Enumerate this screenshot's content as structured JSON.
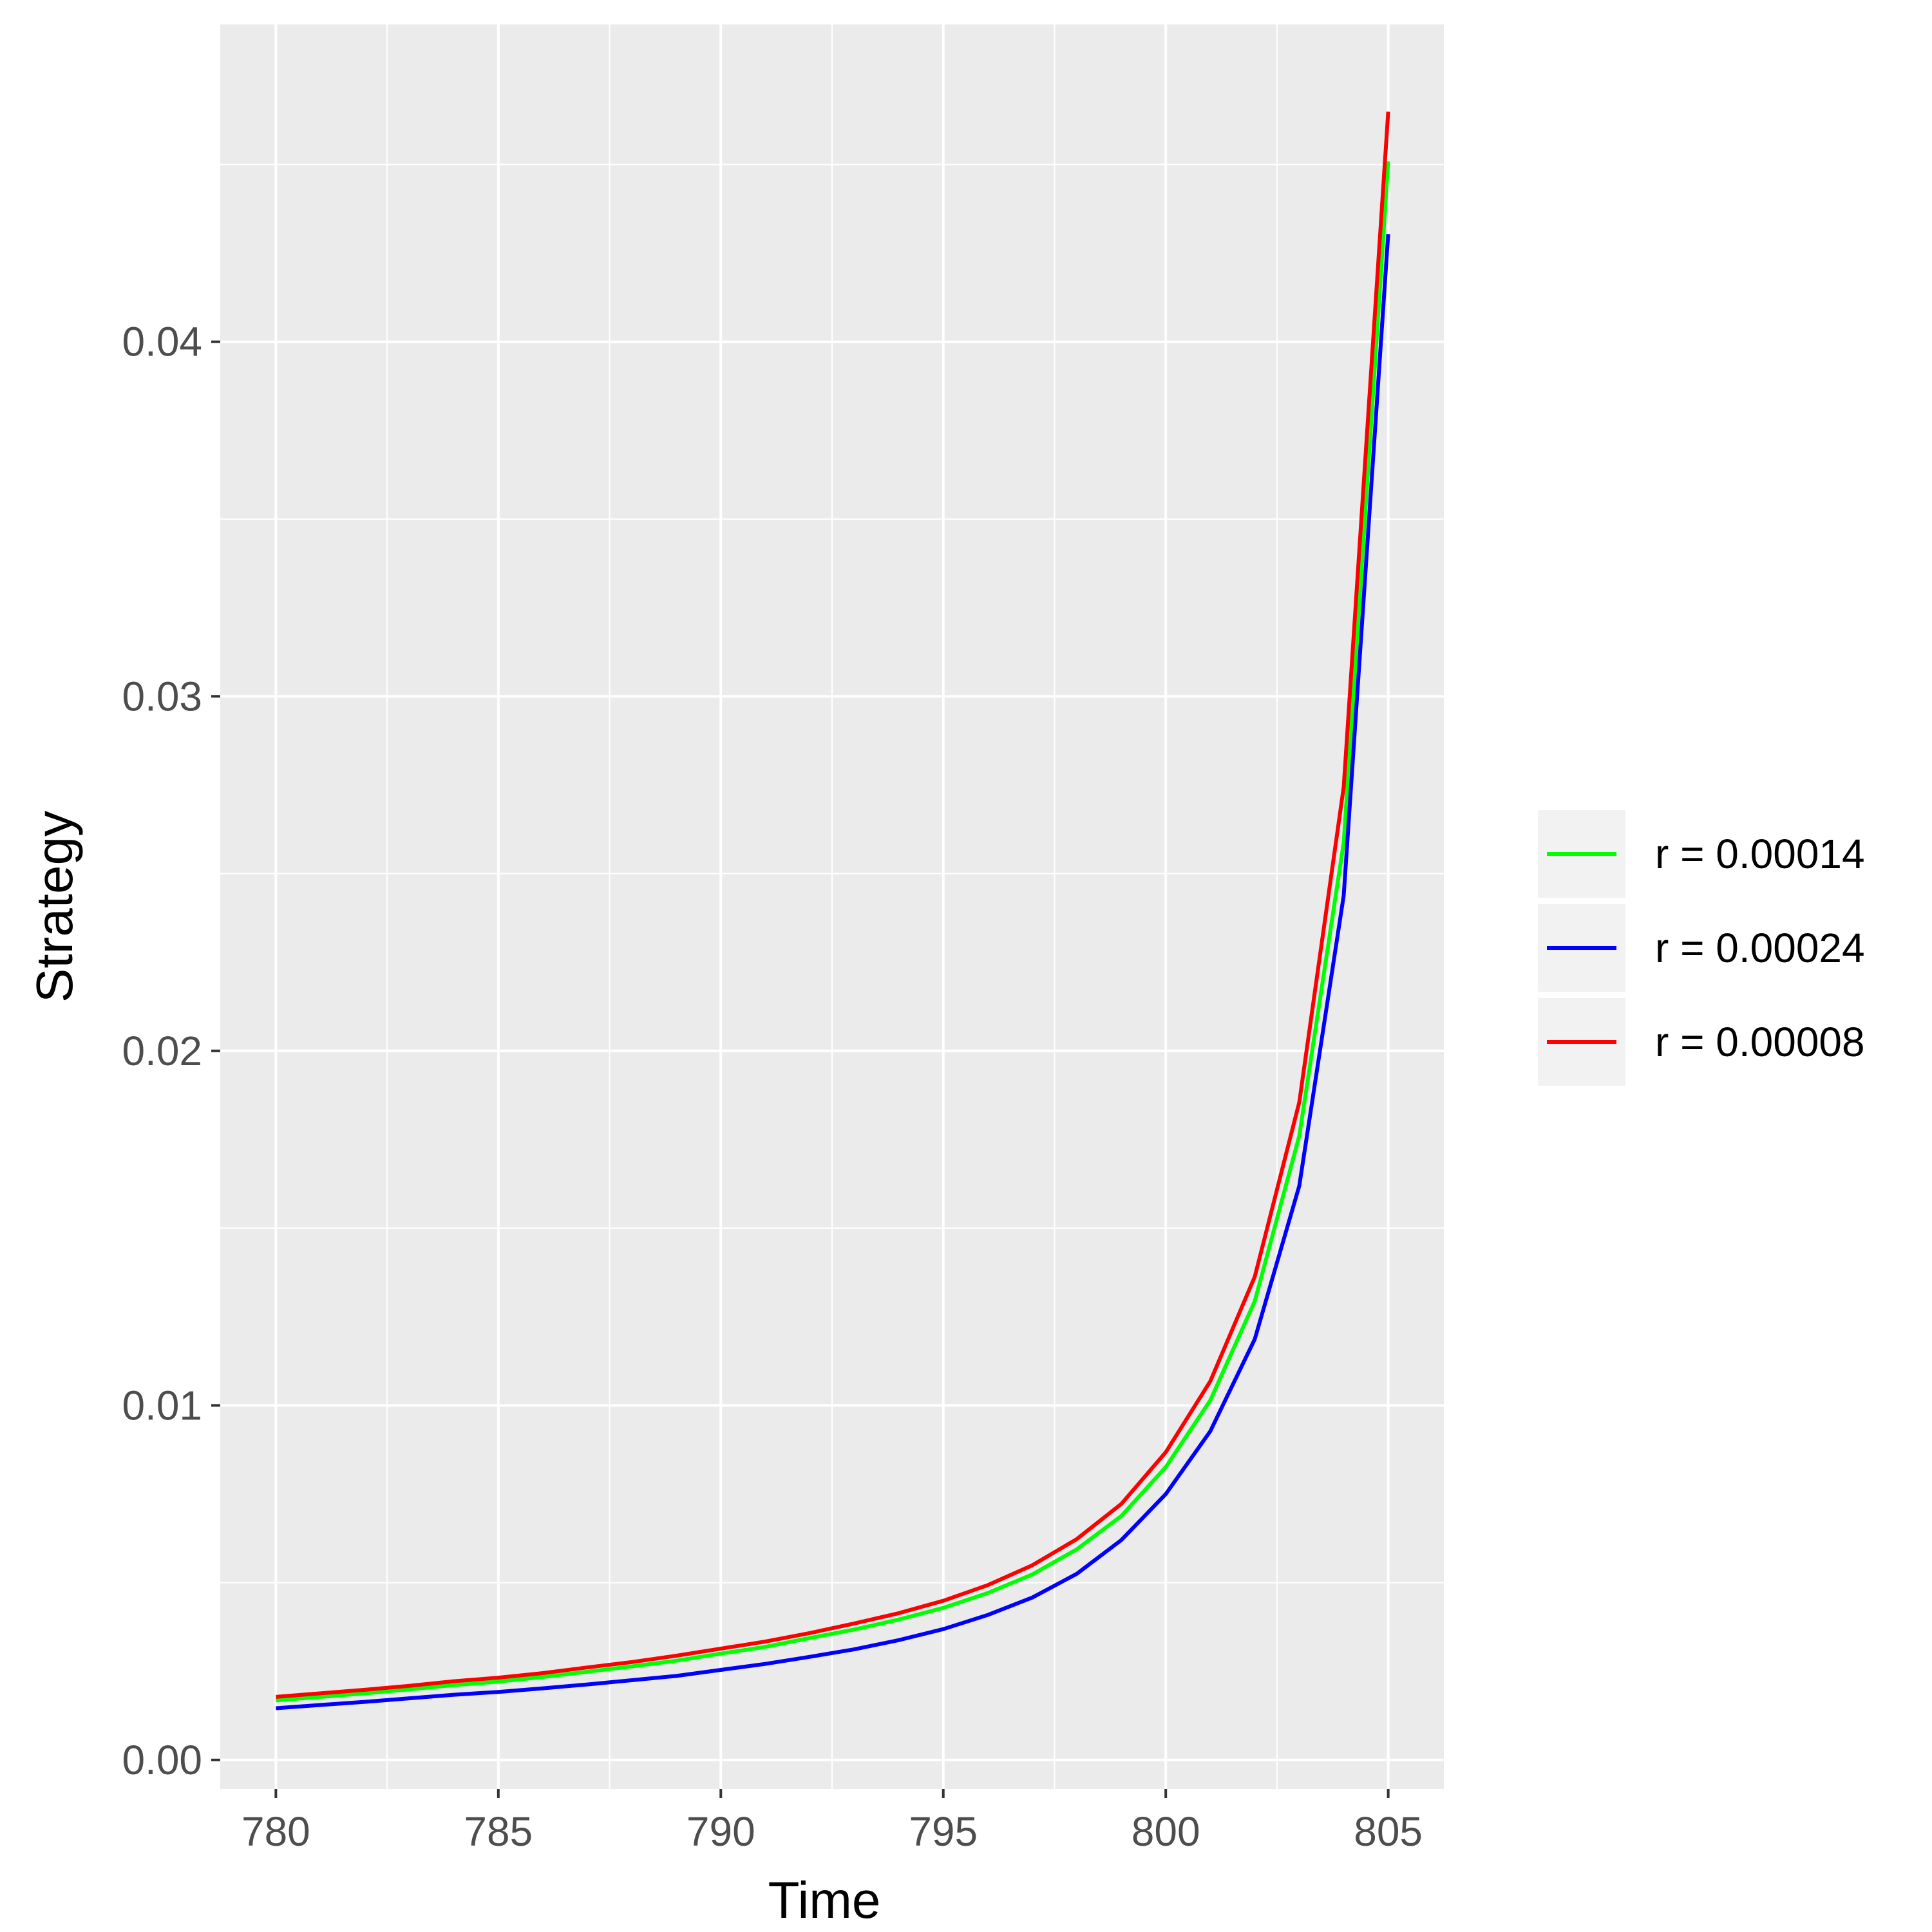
{
  "chart_data": {
    "type": "line",
    "xlabel": "Time",
    "ylabel": "Strategy",
    "xlim": [
      778.75,
      806.25
    ],
    "ylim": [
      -0.00082,
      0.04895
    ],
    "x_ticks": [
      780,
      785,
      790,
      795,
      800,
      805
    ],
    "y_ticks": [
      0.0,
      0.01,
      0.02,
      0.03,
      0.04
    ],
    "y_tick_labels": [
      "0.00",
      "0.01",
      "0.02",
      "0.03",
      "0.04"
    ],
    "grid": true,
    "legend_position": "right",
    "x": [
      780,
      781,
      782,
      783,
      784,
      785,
      786,
      787,
      788,
      789,
      790,
      791,
      792,
      793,
      794,
      795,
      796,
      797,
      798,
      799,
      800,
      801,
      802,
      803,
      804,
      805
    ],
    "series": [
      {
        "name": "r = 0.00014",
        "color": "#00ff00",
        "values": [
          0.00168,
          0.00178,
          0.00188,
          0.00199,
          0.00211,
          0.00221,
          0.00234,
          0.00249,
          0.00264,
          0.0028,
          0.003,
          0.00319,
          0.00344,
          0.00368,
          0.00396,
          0.00429,
          0.00471,
          0.00523,
          0.00594,
          0.00688,
          0.00826,
          0.01014,
          0.01294,
          0.0176,
          0.02587,
          0.04509
        ]
      },
      {
        "name": "r = 0.00024",
        "color": "#0000ff",
        "values": [
          0.00146,
          0.00155,
          0.00164,
          0.00174,
          0.00184,
          0.00192,
          0.00202,
          0.00213,
          0.00225,
          0.00237,
          0.00254,
          0.00271,
          0.00291,
          0.00312,
          0.00338,
          0.00369,
          0.00409,
          0.00458,
          0.00525,
          0.0062,
          0.0075,
          0.00927,
          0.01187,
          0.01619,
          0.02438,
          0.04304
        ]
      },
      {
        "name": "r = 0.00008",
        "color": "#ff0000",
        "values": [
          0.00178,
          0.00188,
          0.00198,
          0.00209,
          0.00222,
          0.00232,
          0.00245,
          0.00261,
          0.00276,
          0.00294,
          0.00314,
          0.00334,
          0.00358,
          0.00385,
          0.00414,
          0.00449,
          0.00493,
          0.00549,
          0.00623,
          0.00722,
          0.00868,
          0.01068,
          0.01363,
          0.01855,
          0.02744,
          0.04649
        ]
      }
    ]
  }
}
